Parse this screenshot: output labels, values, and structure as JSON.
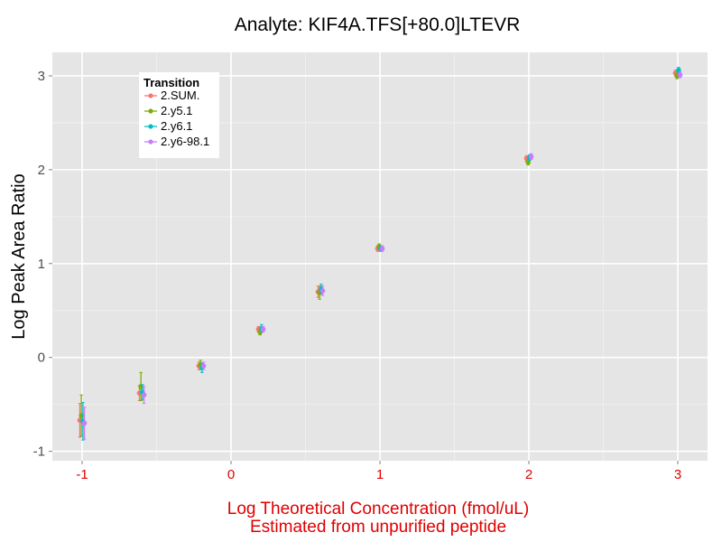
{
  "chart_data": {
    "type": "scatter",
    "title": "Analyte: KIF4A.TFS[+80.0]LTEVR",
    "xlabel_lines": [
      "Log Theoretical Concentration (fmol/uL)",
      "Estimated from unpurified peptide"
    ],
    "ylabel": "Log Peak Area Ratio",
    "xlim": [
      -1.2,
      3.2
    ],
    "ylim": [
      -1.1,
      3.25
    ],
    "x_ticks": [
      "-1",
      "0",
      "1",
      "2",
      "3"
    ],
    "y_ticks": [
      "-1",
      "0",
      "1",
      "2",
      "3"
    ],
    "x_tick_values": [
      -1,
      0,
      1,
      2,
      3
    ],
    "y_tick_values": [
      -1,
      0,
      1,
      2,
      3
    ],
    "grid": true,
    "legend": {
      "title": "Transition",
      "position": "top-left"
    },
    "x": [
      -1,
      -0.6,
      -0.2,
      0.2,
      0.6,
      1,
      2,
      3
    ],
    "series": [
      {
        "name": "2.SUM.",
        "color": "#F8766D",
        "y": [
          -0.67,
          -0.38,
          -0.09,
          0.3,
          0.7,
          1.16,
          2.12,
          3.03
        ],
        "err": [
          0.18,
          0.08,
          0.04,
          0.03,
          0.06,
          0.03,
          0.03,
          0.03
        ]
      },
      {
        "name": "2.y5.1",
        "color": "#7CAE00",
        "y": [
          -0.62,
          -0.31,
          -0.08,
          0.27,
          0.69,
          1.18,
          2.08,
          3.0
        ],
        "err": [
          0.22,
          0.15,
          0.05,
          0.03,
          0.07,
          0.03,
          0.03,
          0.03
        ]
      },
      {
        "name": "2.y6.1",
        "color": "#00BFC4",
        "y": [
          -0.68,
          -0.37,
          -0.11,
          0.31,
          0.73,
          1.16,
          2.13,
          3.06
        ],
        "err": [
          0.2,
          0.08,
          0.05,
          0.04,
          0.05,
          0.03,
          0.03,
          0.03
        ]
      },
      {
        "name": "2.y6-98.1",
        "color": "#C77CFF",
        "y": [
          -0.7,
          -0.4,
          -0.09,
          0.3,
          0.71,
          1.16,
          2.14,
          3.01
        ],
        "err": [
          0.17,
          0.09,
          0.04,
          0.03,
          0.05,
          0.03,
          0.03,
          0.03
        ]
      }
    ]
  }
}
